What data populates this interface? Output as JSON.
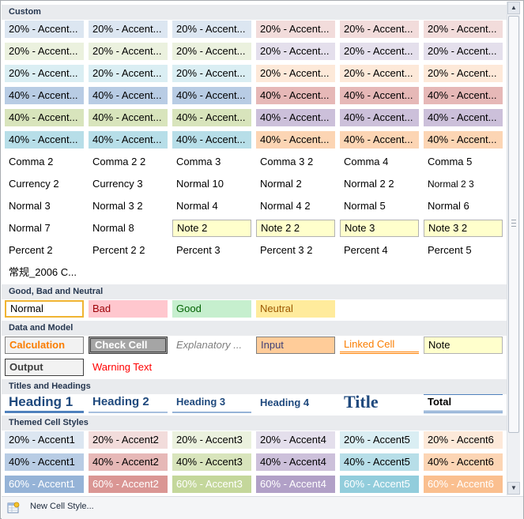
{
  "sections": [
    {
      "id": "custom",
      "title": "Custom"
    },
    {
      "id": "good-bad-neutral",
      "title": "Good, Bad and Neutral"
    },
    {
      "id": "data-model",
      "title": "Data and Model"
    },
    {
      "id": "titles-headings",
      "title": "Titles and Headings"
    },
    {
      "id": "themed",
      "title": "Themed Cell Styles"
    }
  ],
  "custom_rows": [
    [
      "20% - Accent...",
      "20% - Accent...",
      "20% - Accent...",
      "20% - Accent...",
      "20% - Accent...",
      "20% - Accent..."
    ],
    [
      "20% - Accent...",
      "20% - Accent...",
      "20% - Accent...",
      "20% - Accent...",
      "20% - Accent...",
      "20% - Accent..."
    ],
    [
      "20% - Accent...",
      "20% - Accent...",
      "20% - Accent...",
      "20% - Accent...",
      "20% - Accent...",
      "20% - Accent..."
    ],
    [
      "40% - Accent...",
      "40% - Accent...",
      "40% - Accent...",
      "40% - Accent...",
      "40% - Accent...",
      "40% - Accent..."
    ],
    [
      "40% - Accent...",
      "40% - Accent...",
      "40% - Accent...",
      "40% - Accent...",
      "40% - Accent...",
      "40% - Accent..."
    ],
    [
      "40% - Accent...",
      "40% - Accent...",
      "40% - Accent...",
      "40% - Accent...",
      "40% - Accent...",
      "40% - Accent..."
    ],
    [
      "Comma 2",
      "Comma 2 2",
      "Comma 3",
      "Comma 3 2",
      "Comma 4",
      "Comma 5"
    ],
    [
      "Currency 2",
      "Currency 3",
      "Normal 10",
      "Normal 2",
      "Normal 2 2",
      "Normal 2 3"
    ],
    [
      "Normal 3",
      "Normal 3 2",
      "Normal 4",
      "Normal 4 2",
      "Normal 5",
      "Normal 6"
    ],
    [
      "Normal 7",
      "Normal 8",
      "Note 2",
      "Note 2 2",
      "Note 3",
      "Note 3 2"
    ],
    [
      "Percent 2",
      "Percent 2 2",
      "Percent 3",
      "Percent 3 2",
      "Percent 4",
      "Percent 5"
    ],
    [
      "常规_2006 C..."
    ]
  ],
  "good_bad_neutral": [
    "Normal",
    "Bad",
    "Good",
    "Neutral"
  ],
  "data_model": [
    [
      "Calculation",
      "Check Cell",
      "Explanatory ...",
      "Input",
      "Linked Cell",
      "Note"
    ],
    [
      "Output",
      "Warning Text"
    ]
  ],
  "titles_headings": [
    "Heading 1",
    "Heading 2",
    "Heading 3",
    "Heading 4",
    "Title",
    "Total"
  ],
  "themed_rows": [
    [
      "20% - Accent1",
      "20% - Accent2",
      "20% - Accent3",
      "20% - Accent4",
      "20% - Accent5",
      "20% - Accent6"
    ],
    [
      "40% - Accent1",
      "40% - Accent2",
      "40% - Accent3",
      "40% - Accent4",
      "40% - Accent5",
      "40% - Accent6"
    ],
    [
      "60% - Accent1",
      "60% - Accent2",
      "60% - Accent3",
      "60% - Accent4",
      "60% - Accent5",
      "60% - Accent6"
    ]
  ],
  "accent_colors": {
    "p20": [
      "#dce6f1",
      "#f2dcdb",
      "#ebf1de",
      "#e4dfec",
      "#daeef3",
      "#fde9d9"
    ],
    "p40": [
      "#b8cce4",
      "#e6b8b7",
      "#d8e4bc",
      "#ccc0da",
      "#b7dee8",
      "#fcd5b4"
    ],
    "p60": [
      "#95b3d7",
      "#da9694",
      "#c4d79b",
      "#b1a0c7",
      "#92cddc",
      "#fabf8f"
    ]
  },
  "custom_color_order": {
    "row0": [
      "#dce6f1",
      "#dce6f1",
      "#dce6f1",
      "#f2dcdb",
      "#f2dcdb",
      "#f2dcdb"
    ],
    "row1": [
      "#ebf1de",
      "#ebf1de",
      "#ebf1de",
      "#e4dfec",
      "#e4dfec",
      "#e4dfec"
    ],
    "row2": [
      "#daeef3",
      "#daeef3",
      "#daeef3",
      "#fde9d9",
      "#fde9d9",
      "#fde9d9"
    ],
    "row3": [
      "#b8cce4",
      "#b8cce4",
      "#b8cce4",
      "#e6b8b7",
      "#e6b8b7",
      "#e6b8b7"
    ],
    "row4": [
      "#d8e4bc",
      "#d8e4bc",
      "#d8e4bc",
      "#ccc0da",
      "#ccc0da",
      "#ccc0da"
    ],
    "row5": [
      "#b7dee8",
      "#b7dee8",
      "#b7dee8",
      "#fcd5b4",
      "#fcd5b4",
      "#fcd5b4"
    ]
  },
  "footer": {
    "new_style_label": "New Cell Style...",
    "icon": "new-cell-style-icon"
  },
  "scrollbar": {
    "up_icon": "scroll-up-arrow-icon",
    "down_icon": "scroll-down-arrow-icon",
    "up_glyph": "▲",
    "down_glyph": "▼"
  }
}
